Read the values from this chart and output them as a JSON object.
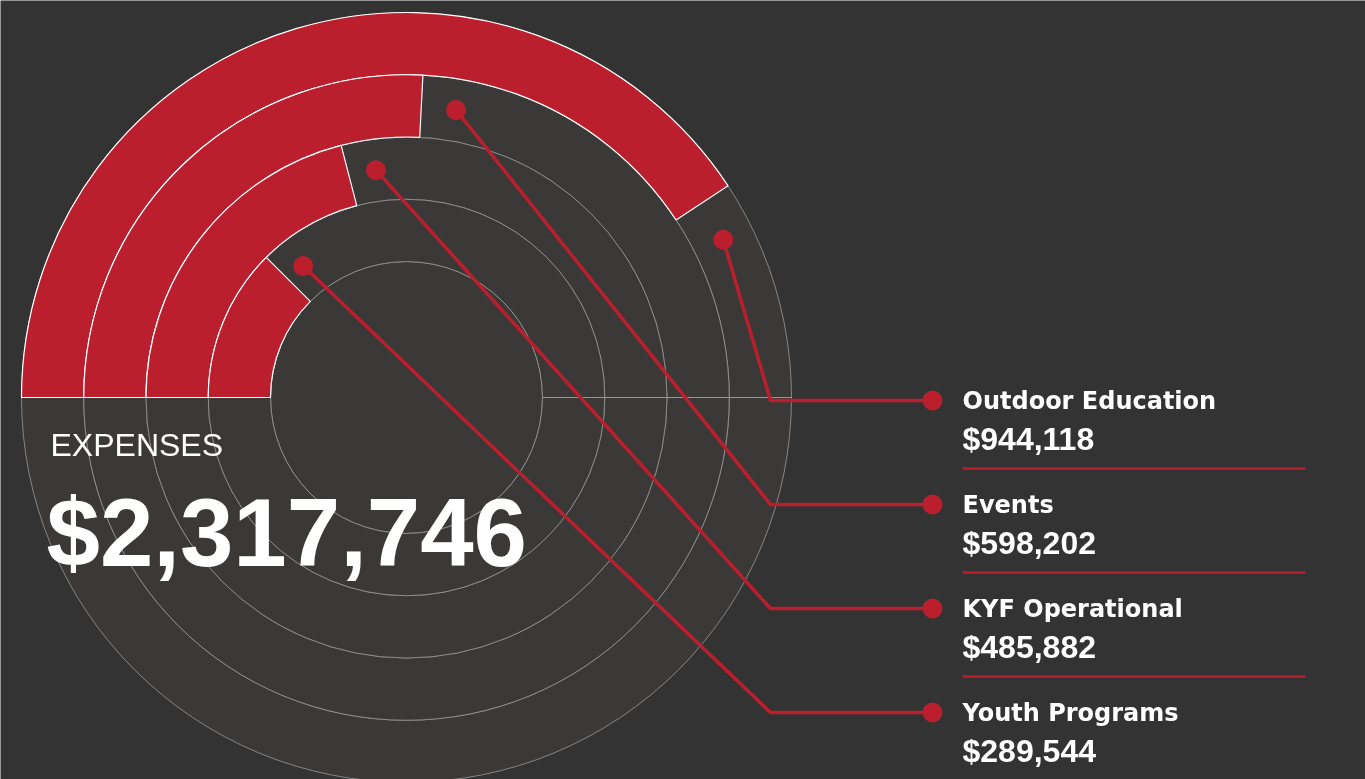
{
  "chart_data": {
    "type": "other",
    "title": "EXPENSES",
    "subtitle": "$2,317,746",
    "categories": [
      "Outdoor Education",
      "Events",
      "KYF Operational",
      "Youth Programs"
    ],
    "values": [
      944118,
      598202,
      485882,
      289544
    ],
    "value_labels": [
      "$944,118",
      "$598,202",
      "$485,882",
      "$289,544"
    ],
    "color": "#bb1e2d"
  }
}
